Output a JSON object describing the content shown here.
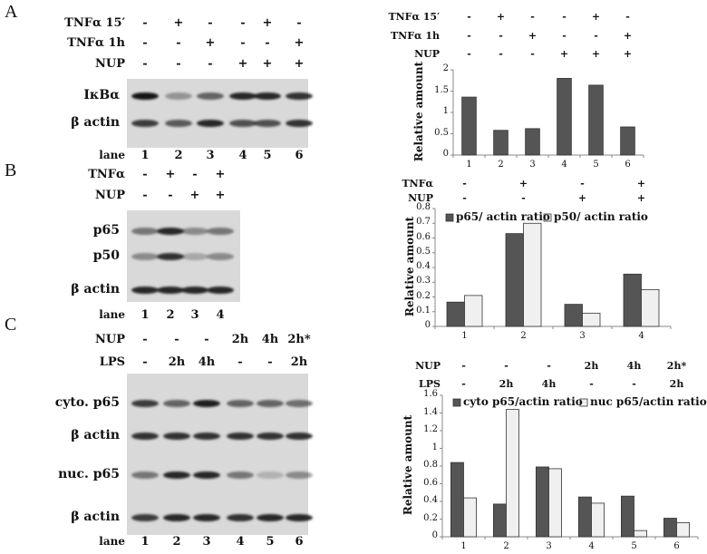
{
  "panels": {
    "A": {
      "letter": "A",
      "conditions": [
        {
          "label": "TNFα 15′",
          "values": [
            "-",
            "+",
            "-",
            "-",
            "+",
            "-"
          ]
        },
        {
          "label": "TNFα 1h",
          "values": [
            "-",
            "-",
            "+",
            "-",
            "-",
            "+"
          ]
        },
        {
          "label": "NUP",
          "values": [
            "-",
            "-",
            "-",
            "+",
            "+",
            "+"
          ]
        }
      ],
      "blot_rows": [
        "IκBα",
        "β actin"
      ],
      "lane_label": "lane",
      "lanes": [
        "1",
        "2",
        "3",
        "4",
        "5",
        "6"
      ]
    },
    "B": {
      "letter": "B",
      "conditions": [
        {
          "label": "TNFα",
          "values": [
            "-",
            "+",
            "-",
            "+"
          ]
        },
        {
          "label": "NUP",
          "values": [
            "-",
            "-",
            "+",
            "+"
          ]
        }
      ],
      "blot_rows": [
        "p65",
        "p50",
        "β actin"
      ],
      "lane_label": "lane",
      "lanes": [
        "1",
        "2",
        "3",
        "4"
      ]
    },
    "C": {
      "letter": "C",
      "conditions": [
        {
          "label": "NUP",
          "values": [
            "-",
            "-",
            "-",
            "2h",
            "4h",
            "2h*"
          ]
        },
        {
          "label": "LPS",
          "values": [
            "-",
            "2h",
            "4h",
            "-",
            "-",
            "2h"
          ]
        }
      ],
      "blot_rows": [
        "cyto. p65",
        "β actin",
        "nuc. p65",
        "β actin"
      ],
      "lane_label": "lane",
      "lanes": [
        "1",
        "2",
        "3",
        "4",
        "5",
        "6"
      ]
    }
  },
  "colors": {
    "dark_bar": "#555555",
    "light_bar": "#f0f0f0",
    "bar_stroke": "#333333",
    "axis": "#888888"
  },
  "chart_data": [
    {
      "type": "bar",
      "conditions": [
        {
          "label": "TNFα 15′",
          "values": [
            "-",
            "+",
            "-",
            "-",
            "+",
            "-"
          ]
        },
        {
          "label": "TNFα 1h",
          "values": [
            "-",
            "-",
            "+",
            "-",
            "-",
            "+"
          ]
        },
        {
          "label": "NUP",
          "values": [
            "-",
            "-",
            "-",
            "+",
            "+",
            "+"
          ]
        }
      ],
      "categories": [
        "1",
        "2",
        "3",
        "4",
        "5",
        "6"
      ],
      "series": [
        {
          "values": [
            1.36,
            0.58,
            0.62,
            1.8,
            1.64,
            0.66
          ]
        }
      ],
      "ylabel": "Relative amount",
      "ylim": [
        0,
        2
      ],
      "yticks": [
        "0",
        "0.5",
        "1",
        "1.5",
        "2"
      ],
      "grid": false,
      "legend": "none"
    },
    {
      "type": "bar",
      "conditions": [
        {
          "label": "TNFα",
          "values": [
            "-",
            "+",
            "-",
            "+"
          ]
        },
        {
          "label": "NUP",
          "values": [
            "-",
            "-",
            "+",
            "+"
          ]
        }
      ],
      "categories": [
        "1",
        "2",
        "3",
        "4"
      ],
      "series": [
        {
          "name": "p65/ actin ratio",
          "values": [
            0.165,
            0.63,
            0.15,
            0.355
          ]
        },
        {
          "name": "p50/ actin ratio",
          "values": [
            0.21,
            0.7,
            0.09,
            0.25
          ]
        }
      ],
      "ylabel": "Relative amount",
      "ylim": [
        0,
        0.8
      ],
      "yticks": [
        "0",
        "0.1",
        "0.2",
        "0.3",
        "0.4",
        "0.5",
        "0.6",
        "0.7",
        "0.8"
      ],
      "grid": false,
      "legend": "top"
    },
    {
      "type": "bar",
      "conditions": [
        {
          "label": "NUP",
          "values": [
            "-",
            "-",
            "-",
            "2h",
            "4h",
            "2h*"
          ]
        },
        {
          "label": "LPS",
          "values": [
            "-",
            "2h",
            "4h",
            "-",
            "-",
            "2h"
          ]
        }
      ],
      "categories": [
        "1",
        "2",
        "3",
        "4",
        "5",
        "6"
      ],
      "series": [
        {
          "name": "cyto p65/actin ratio",
          "values": [
            0.84,
            0.37,
            0.79,
            0.45,
            0.46,
            0.21
          ]
        },
        {
          "name": "nuc p65/actin ratio",
          "values": [
            0.44,
            1.44,
            0.77,
            0.38,
            0.07,
            0.16
          ]
        }
      ],
      "ylabel": "Relative amount",
      "ylim": [
        0,
        1.6
      ],
      "yticks": [
        "0",
        "0.2",
        "0.4",
        "0.6",
        "0.8",
        "1",
        "1.2",
        "1.4",
        "1.6"
      ],
      "grid": false,
      "legend": "top"
    }
  ]
}
